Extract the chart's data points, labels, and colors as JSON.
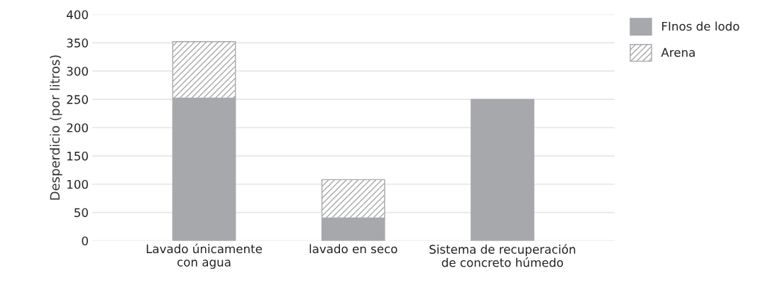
{
  "chart_data": {
    "type": "bar",
    "stacked": true,
    "ylabel": "Desperdicio (por litros)",
    "categories": [
      "Lavado únicamente\ncon agua",
      "lavado en seco",
      "Sistema de recuperación\nde concreto húmedo"
    ],
    "series": [
      {
        "name": "FInos de lodo",
        "color": "#a7a8ab",
        "values": [
          252,
          40,
          250
        ]
      },
      {
        "name": "Arena",
        "color": "#a7a8ab",
        "values": [
          100,
          68,
          null
        ]
      }
    ],
    "ylim": [
      0,
      400
    ],
    "yticks": [
      0,
      50,
      100,
      150,
      200,
      250,
      300,
      350,
      400
    ],
    "grid": "y",
    "legend": "top right"
  }
}
